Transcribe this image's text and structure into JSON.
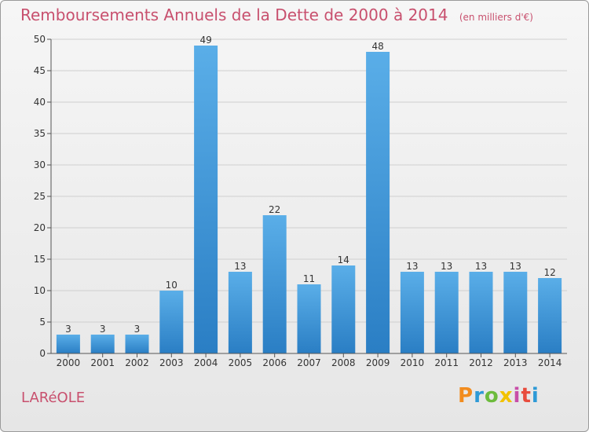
{
  "title": "Remboursements Annuels de la Dette de 2000 à 2014",
  "unit_note": "(en milliers d'€)",
  "location_label": "LARéOLE",
  "logo": {
    "letters": [
      "P",
      "r",
      "o",
      "x",
      "i",
      "t",
      "i"
    ],
    "colors": [
      "#f28c1e",
      "#2e9ad6",
      "#6cbb3c",
      "#f2c200",
      "#c84da8",
      "#e84c3d",
      "#2e9ad6"
    ]
  },
  "colors": {
    "bar_top": "#5aaee8",
    "bar_bottom": "#2a7ec4",
    "title": "#c8506e"
  },
  "chart_data": {
    "type": "bar",
    "categories": [
      "2000",
      "2001",
      "2002",
      "2003",
      "2004",
      "2005",
      "2006",
      "2007",
      "2008",
      "2009",
      "2010",
      "2011",
      "2012",
      "2013",
      "2014"
    ],
    "values": [
      3,
      3,
      3,
      10,
      49,
      13,
      22,
      11,
      14,
      48,
      13,
      13,
      13,
      13,
      12
    ],
    "data_labels": [
      "3",
      "3",
      "3",
      "10",
      "49",
      "13",
      "22",
      "11",
      "14",
      "48",
      "13",
      "13",
      "13",
      "13",
      "12"
    ],
    "yticks": [
      0,
      5,
      10,
      15,
      20,
      25,
      30,
      35,
      40,
      45,
      50
    ],
    "ylim": [
      0,
      50
    ],
    "grid": true
  }
}
